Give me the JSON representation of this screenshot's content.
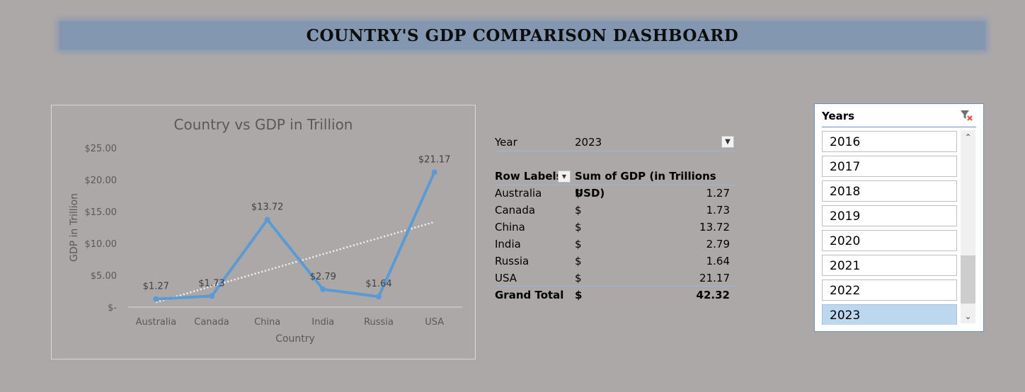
{
  "dashboard": {
    "title": "COUNTRY'S GDP COMPARISON DASHBOARD"
  },
  "pivot": {
    "filter_label": "Year",
    "filter_value": "2023",
    "row_labels_header": "Row Labels",
    "value_header": "Sum of GDP (in Trillions USD)",
    "currency": "$",
    "rows": [
      {
        "label": "Australia",
        "value": "1.27"
      },
      {
        "label": "Canada",
        "value": "1.73"
      },
      {
        "label": "China",
        "value": "13.72"
      },
      {
        "label": "India",
        "value": "2.79"
      },
      {
        "label": "Russia",
        "value": "1.64"
      },
      {
        "label": "USA",
        "value": "21.17"
      }
    ],
    "grand_total_label": "Grand Total",
    "grand_total_value": "42.32"
  },
  "slicer": {
    "title": "Years",
    "items": [
      "2016",
      "2017",
      "2018",
      "2019",
      "2020",
      "2021",
      "2022",
      "2023"
    ],
    "selected": "2023"
  },
  "colors": {
    "line": "#5b9bd5",
    "background": "#ada8a8",
    "text_gray": "#595959"
  },
  "chart_data": {
    "type": "line",
    "title": "Country vs GDP in Trillion",
    "xlabel": "Country",
    "ylabel": "GDP in Trillion",
    "categories": [
      "Australia",
      "Canada",
      "China",
      "India",
      "Russia",
      "USA"
    ],
    "series": [
      {
        "values": [
          1.27,
          1.73,
          13.72,
          2.79,
          1.64,
          21.17
        ]
      }
    ],
    "data_labels": [
      "$1.27",
      "$1.73",
      "$13.72",
      "$2.79",
      "$1.64",
      "$21.17"
    ],
    "y_ticks": [
      {
        "value": 0,
        "label": "$-"
      },
      {
        "value": 5,
        "label": "$5.00"
      },
      {
        "value": 10,
        "label": "$10.00"
      },
      {
        "value": 15,
        "label": "$15.00"
      },
      {
        "value": 20,
        "label": "$20.00"
      },
      {
        "value": 25,
        "label": "$25.00"
      }
    ],
    "ylim": [
      0,
      25
    ],
    "trendline": "linear",
    "grid": false
  }
}
